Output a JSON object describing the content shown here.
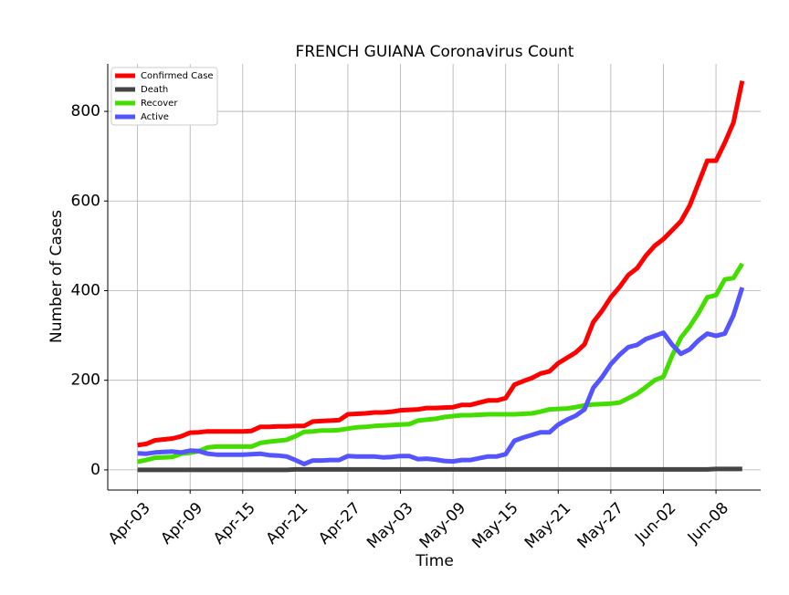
{
  "chart_data": {
    "type": "line",
    "title": "FRENCH GUIANA Coronavirus Count",
    "x_label": "Time",
    "y_label": "Number of Cases",
    "categories": [
      "Apr-03",
      null,
      null,
      null,
      null,
      null,
      "Apr-09",
      null,
      null,
      null,
      null,
      null,
      "Apr-15",
      null,
      null,
      null,
      null,
      null,
      "Apr-21",
      null,
      null,
      null,
      null,
      null,
      "Apr-27",
      null,
      null,
      null,
      null,
      null,
      "May-03",
      null,
      null,
      null,
      null,
      null,
      "May-09",
      null,
      null,
      null,
      null,
      null,
      "May-15",
      null,
      null,
      null,
      null,
      null,
      "May-21",
      null,
      null,
      null,
      null,
      null,
      "May-27",
      null,
      null,
      null,
      null,
      null,
      "Jun-02",
      null,
      null,
      null,
      null,
      null,
      "Jun-08",
      null,
      null,
      null
    ],
    "series": [
      {
        "name": "Confirmed Case",
        "color": "#ff0000",
        "values": [
          55,
          58,
          66,
          68,
          70,
          75,
          83,
          84,
          86,
          86,
          86,
          86,
          86,
          87,
          96,
          96,
          97,
          97,
          98,
          98,
          108,
          109,
          110,
          111,
          124,
          125,
          126,
          128,
          128,
          130,
          133,
          134,
          135,
          138,
          138,
          139,
          140,
          145,
          145,
          150,
          155,
          155,
          160,
          190,
          198,
          205,
          215,
          220,
          238,
          250,
          262,
          280,
          330,
          355,
          385,
          408,
          435,
          450,
          478,
          500,
          515,
          535,
          555,
          590,
          640,
          690,
          690,
          730,
          775,
          868
        ]
      },
      {
        "name": "Death",
        "color": "#444444",
        "values": [
          0,
          0,
          0,
          0,
          0,
          0,
          0,
          0,
          0,
          0,
          0,
          0,
          0,
          0,
          0,
          0,
          0,
          0,
          1,
          1,
          1,
          1,
          1,
          1,
          1,
          1,
          1,
          1,
          1,
          1,
          1,
          1,
          1,
          1,
          1,
          1,
          1,
          1,
          1,
          1,
          1,
          1,
          1,
          1,
          1,
          1,
          1,
          1,
          1,
          1,
          1,
          1,
          1,
          1,
          1,
          1,
          1,
          1,
          1,
          1,
          1,
          1,
          1,
          1,
          1,
          1,
          2,
          2,
          2,
          2
        ]
      },
      {
        "name": "Recover",
        "color": "#44dd00",
        "values": [
          18,
          22,
          27,
          28,
          29,
          36,
          38,
          42,
          50,
          52,
          52,
          52,
          52,
          52,
          60,
          63,
          65,
          67,
          75,
          85,
          86,
          88,
          88,
          89,
          92,
          95,
          96,
          98,
          99,
          100,
          101,
          102,
          110,
          112,
          114,
          118,
          120,
          122,
          122,
          123,
          124,
          124,
          124,
          124,
          125,
          126,
          130,
          135,
          136,
          137,
          140,
          144,
          146,
          147,
          148,
          150,
          160,
          170,
          185,
          200,
          208,
          255,
          295,
          320,
          350,
          385,
          390,
          425,
          428,
          460
        ]
      },
      {
        "name": "Active",
        "color": "#5555ff",
        "values": [
          37,
          36,
          39,
          40,
          41,
          39,
          43,
          42,
          36,
          34,
          34,
          34,
          34,
          35,
          36,
          33,
          32,
          30,
          22,
          13,
          21,
          21,
          22,
          22,
          31,
          30,
          30,
          30,
          28,
          29,
          31,
          31,
          24,
          25,
          23,
          20,
          19,
          22,
          22,
          26,
          30,
          30,
          35,
          65,
          72,
          78,
          84,
          84,
          101,
          112,
          121,
          135,
          183,
          207,
          236,
          257,
          274,
          279,
          292,
          299,
          306,
          279,
          259,
          269,
          289,
          304,
          299,
          304,
          345,
          407
        ]
      }
    ],
    "ylim": [
      -45,
      906
    ],
    "yticks": [
      0,
      200,
      400,
      600,
      800
    ],
    "grid": true,
    "legend": "upper left"
  }
}
